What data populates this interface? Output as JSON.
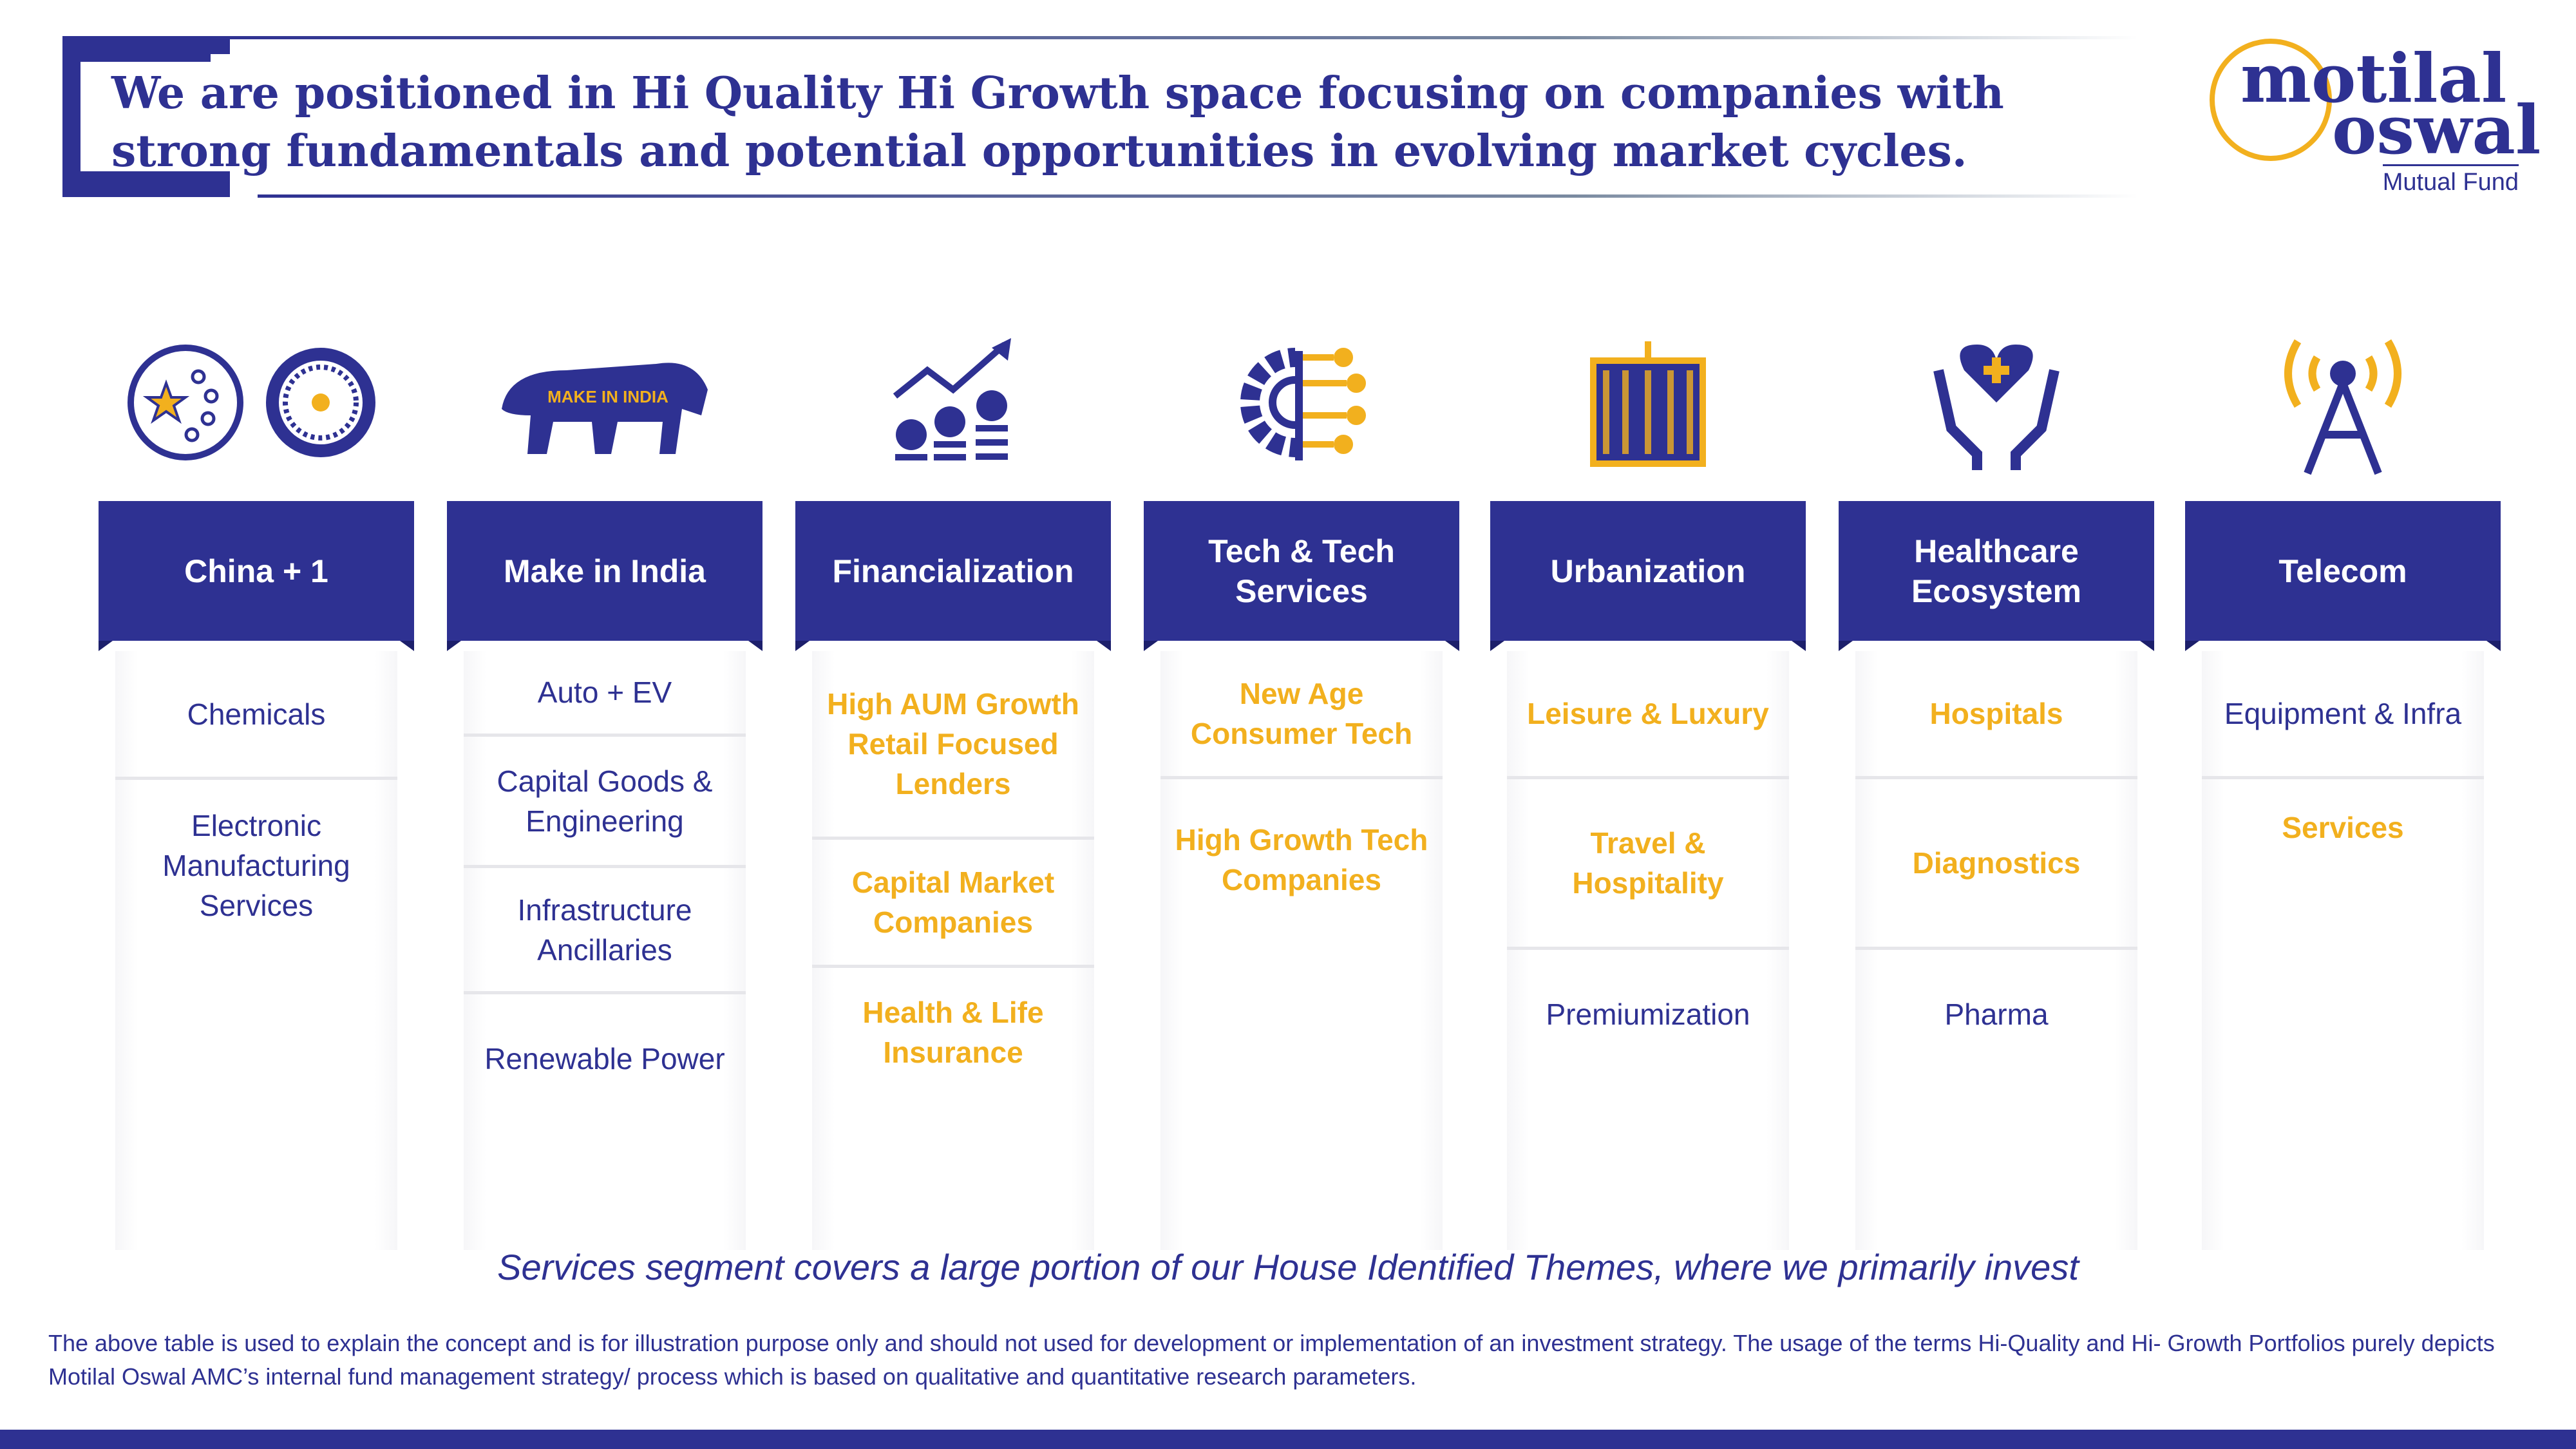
{
  "header": {
    "title": "We are positioned in Hi Quality Hi Growth space focusing on companies with strong fundamentals and potential opportunities in evolving market cycles."
  },
  "logo": {
    "line1": "motilal",
    "line2": "oswal",
    "sub": "Mutual Fund"
  },
  "colors": {
    "navy": "#2e3192",
    "gold": "#f2b01e"
  },
  "themes": [
    {
      "title": "China + 1",
      "icon": "china-plus-one-icon",
      "items": [
        {
          "label": "Chemicals",
          "highlight": false
        },
        {
          "label": "Electronic Manufacturing Services",
          "highlight": false
        }
      ]
    },
    {
      "title": "Make in India",
      "icon": "make-in-india-lion-icon",
      "icon_text": "MAKE IN INDIA",
      "items": [
        {
          "label": "Auto + EV",
          "highlight": false
        },
        {
          "label": "Capital Goods & Engineering",
          "highlight": false
        },
        {
          "label": "Infrastructure Ancillaries",
          "highlight": false
        },
        {
          "label": "Renewable Power",
          "highlight": false
        }
      ]
    },
    {
      "title": "Financialization",
      "icon": "rupee-growth-chart-icon",
      "items": [
        {
          "label": "High AUM Growth Retail Focused Lenders",
          "highlight": true
        },
        {
          "label": "Capital Market Companies",
          "highlight": true
        },
        {
          "label": "Health & Life Insurance",
          "highlight": true
        }
      ]
    },
    {
      "title": "Tech & Tech Services",
      "icon": "gear-circuit-icon",
      "items": [
        {
          "label": "New Age Consumer Tech",
          "highlight": true
        },
        {
          "label": "High Growth Tech Companies",
          "highlight": true
        }
      ]
    },
    {
      "title": "Urbanization",
      "icon": "city-buildings-icon",
      "items": [
        {
          "label": "Leisure & Luxury",
          "highlight": true
        },
        {
          "label": "Travel & Hospitality",
          "highlight": true
        },
        {
          "label": "Premiumization",
          "highlight": false
        }
      ]
    },
    {
      "title": "Healthcare Ecosystem",
      "icon": "hands-heart-icon",
      "items": [
        {
          "label": "Hospitals",
          "highlight": true
        },
        {
          "label": "Diagnostics",
          "highlight": true
        },
        {
          "label": "Pharma",
          "highlight": false
        }
      ]
    },
    {
      "title": "Telecom",
      "icon": "antenna-tower-icon",
      "items": [
        {
          "label": "Equipment & Infra",
          "highlight": false
        },
        {
          "label": "Services",
          "highlight": true
        }
      ]
    }
  ],
  "tagline": "Services segment covers a large portion of our House Identified Themes, where we primarily invest",
  "disclaimer": "The above table is used to explain the concept and is for illustration purpose only and should not used for development or implementation of an investment strategy. The usage of the terms Hi-Quality and Hi- Growth Portfolios purely depicts Motilal Oswal AMC’s internal fund management strategy/ process which is based on qualitative and quantitative research parameters."
}
